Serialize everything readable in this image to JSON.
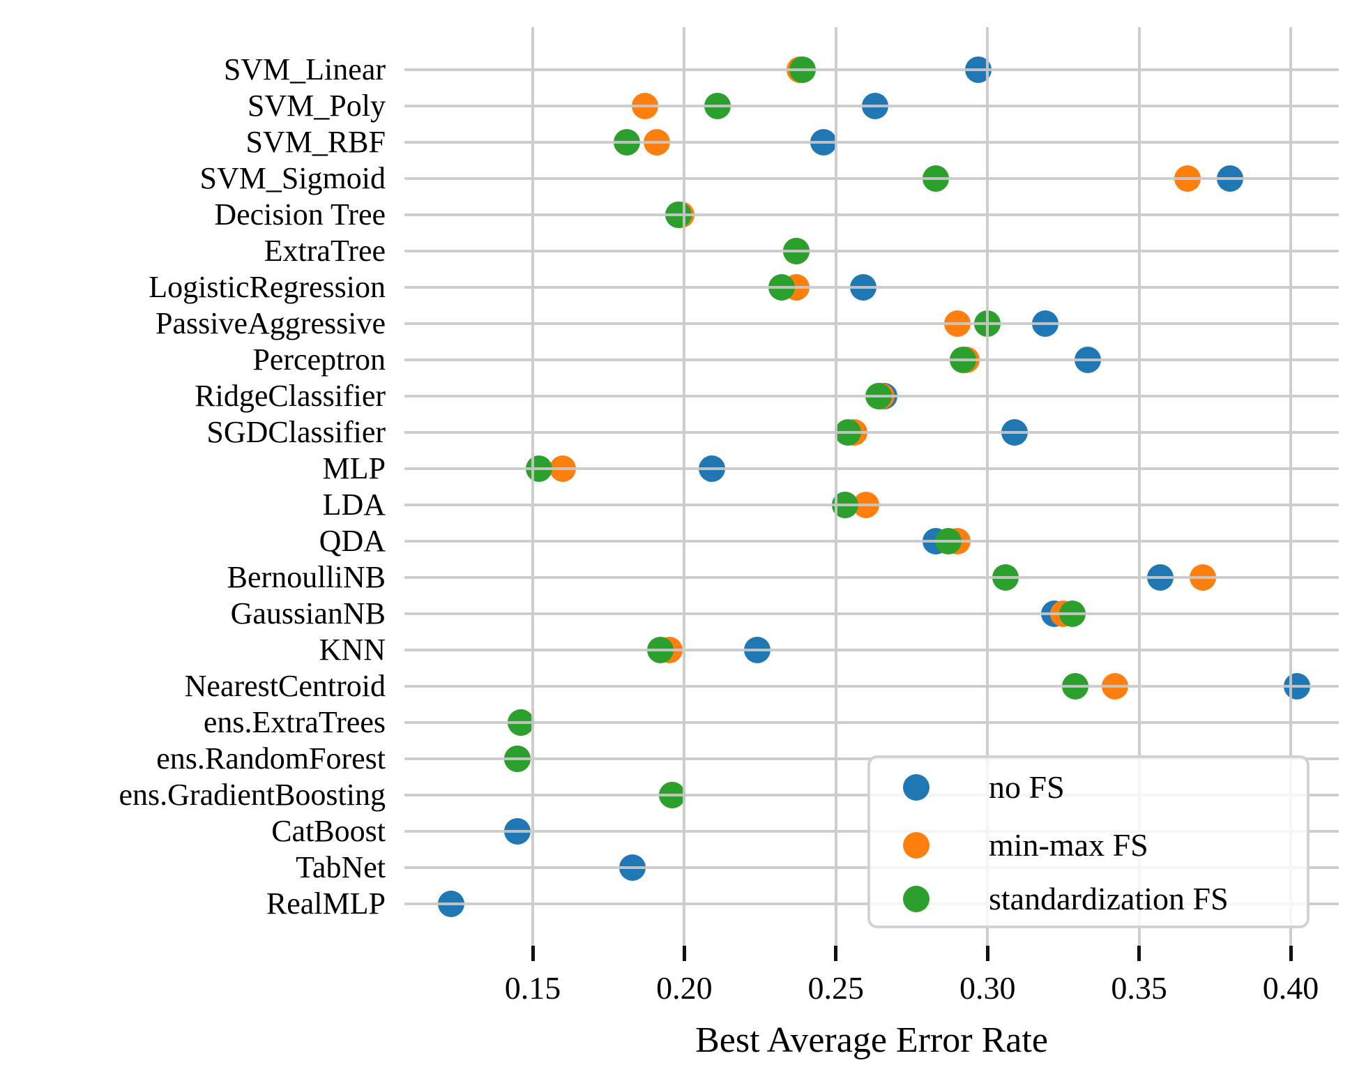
{
  "chart_data": {
    "type": "scatter",
    "title": "",
    "xlabel": "Best Average Error Rate",
    "ylabel": "",
    "grid": "on, drawn above markers",
    "legend_position": "lower right inside axes",
    "xlim": [
      0.108,
      0.416
    ],
    "x_ticks": [
      0.15,
      0.2,
      0.25,
      0.3,
      0.35,
      0.4
    ],
    "x_tick_labels": [
      "0.15",
      "0.20",
      "0.25",
      "0.30",
      "0.35",
      "0.40"
    ],
    "categories": [
      "SVM_Linear",
      "SVM_Poly",
      "SVM_RBF",
      "SVM_Sigmoid",
      "Decision Tree",
      "ExtraTree",
      "LogisticRegression",
      "PassiveAggressive",
      "Perceptron",
      "RidgeClassifier",
      "SGDClassifier",
      "MLP",
      "LDA",
      "QDA",
      "BernoulliNB",
      "GaussianNB",
      "KNN",
      "NearestCentroid",
      "ens.ExtraTrees",
      "ens.RandomForest",
      "ens.GradientBoosting",
      "CatBoost",
      "TabNet",
      "RealMLP"
    ],
    "series": [
      {
        "name": "no FS",
        "color": "#1f77b4",
        "values": [
          0.297,
          0.263,
          0.246,
          0.38,
          0.198,
          0.237,
          0.259,
          0.319,
          0.333,
          0.266,
          0.309,
          0.209,
          0.253,
          0.283,
          0.357,
          0.322,
          0.224,
          0.402,
          0.146,
          0.145,
          0.196,
          0.145,
          0.183,
          0.123
        ]
      },
      {
        "name": "min-max FS",
        "color": "#ff7f0e",
        "values": [
          0.238,
          0.187,
          0.191,
          0.366,
          0.199,
          0.237,
          0.237,
          0.29,
          0.293,
          0.265,
          0.256,
          0.16,
          0.26,
          0.29,
          0.371,
          0.325,
          0.195,
          0.342,
          0.146,
          0.145,
          0.196,
          null,
          null,
          null
        ]
      },
      {
        "name": "standardization FS",
        "color": "#2ca02c",
        "values": [
          0.239,
          0.211,
          0.181,
          0.283,
          0.198,
          0.237,
          0.232,
          0.3,
          0.292,
          0.264,
          0.254,
          0.152,
          0.253,
          0.287,
          0.306,
          0.328,
          0.192,
          0.329,
          0.146,
          0.145,
          0.196,
          null,
          null,
          null
        ]
      }
    ],
    "styling": {
      "gridline_color": "#c9c9c9",
      "tick_color": "#111111",
      "marker_diameter_px": 38,
      "background": "#ffffff"
    }
  }
}
